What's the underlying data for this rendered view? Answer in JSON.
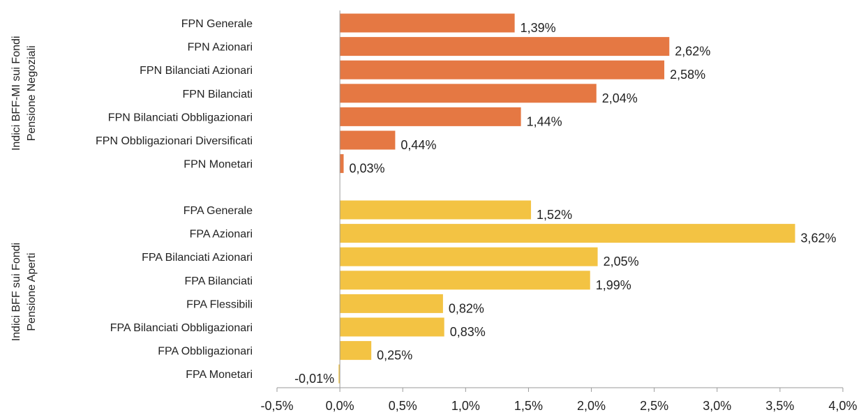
{
  "chart_data": {
    "type": "bar",
    "orientation": "horizontal",
    "xlim": [
      -0.5,
      4.0
    ],
    "x_ticks": [
      "-0,5%",
      "0,0%",
      "0,5%",
      "1,0%",
      "1,5%",
      "2,0%",
      "2,5%",
      "3,0%",
      "3,5%",
      "4,0%"
    ],
    "grid": false,
    "groups": [
      {
        "label_lines": [
          "Indici BFF-MI sui Fondi",
          "Pensione Negoziali"
        ],
        "color": "#E57843",
        "categories": [
          "FPN Generale",
          "FPN Azionari",
          "FPN Bilanciati Azionari",
          "FPN Bilanciati",
          "FPN Bilanciati Obbligazionari",
          "FPN Obbligazionari Diversificati",
          "FPN Monetari"
        ],
        "values": [
          1.39,
          2.62,
          2.58,
          2.04,
          1.44,
          0.44,
          0.03
        ],
        "value_labels": [
          "1,39%",
          "2,62%",
          "2,58%",
          "2,04%",
          "1,44%",
          "0,44%",
          "0,03%"
        ]
      },
      {
        "label_lines": [
          "Indici BFF sui Fondi",
          "Pensione Aperti"
        ],
        "color": "#F3C343",
        "categories": [
          "FPA Generale",
          "FPA Azionari",
          "FPA Bilanciati Azionari",
          "FPA Bilanciati",
          "FPA Flessibili",
          "FPA Bilanciati Obbligazionari",
          "FPA Obbligazionari",
          "FPA Monetari"
        ],
        "values": [
          1.52,
          3.62,
          2.05,
          1.99,
          0.82,
          0.83,
          0.25,
          -0.01
        ],
        "value_labels": [
          "1,52%",
          "3,62%",
          "2,05%",
          "1,99%",
          "0,82%",
          "0,83%",
          "0,25%",
          "-0,01%"
        ]
      }
    ]
  }
}
